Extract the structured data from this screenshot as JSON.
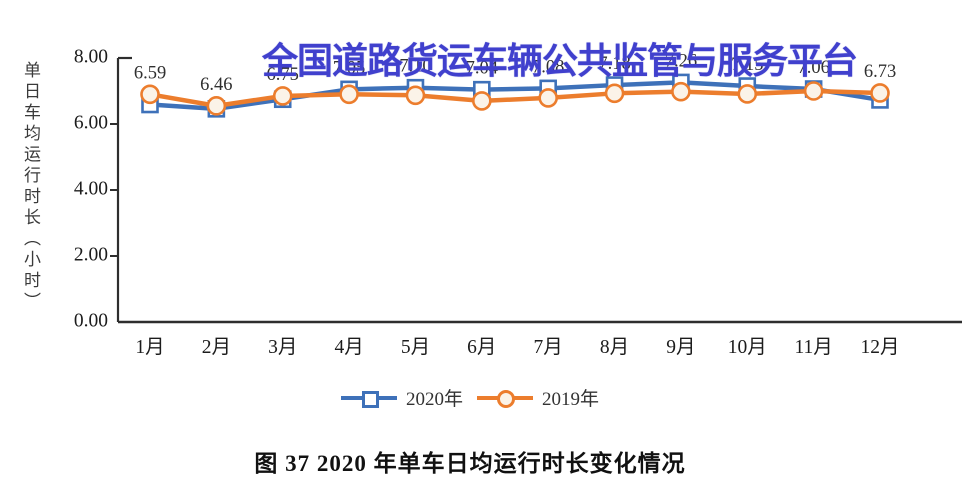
{
  "watermark": "全国道路货运车辆公共监管与服务平台",
  "caption": "图 37 2020 年单车日均运行时长变化情况",
  "colors": {
    "series_2020": "#3e71b9",
    "series_2019": "#ec7d2d",
    "watermark": "#4040cd",
    "axis": "#2e2e2e",
    "point_label_text": "#303030"
  },
  "chart_data": {
    "type": "line",
    "title": "",
    "xlabel": "",
    "ylabel": "单日车均运行时长（小时）",
    "categories": [
      "1月",
      "2月",
      "3月",
      "4月",
      "5月",
      "6月",
      "7月",
      "8月",
      "9月",
      "10月",
      "11月",
      "12月"
    ],
    "ylim": [
      0,
      8
    ],
    "ytick_values": [
      0,
      2,
      4,
      6,
      8
    ],
    "ytick_labels": [
      "0.00",
      "2.00",
      "4.00",
      "6.00",
      "8.00"
    ],
    "grid": false,
    "legend_position": "bottom",
    "series": [
      {
        "name": "2020年",
        "marker": "square",
        "color": "#3e71b9",
        "labeled": true,
        "values": [
          6.59,
          6.46,
          6.75,
          7.05,
          7.1,
          7.04,
          7.08,
          7.18,
          7.26,
          7.15,
          7.06,
          6.73
        ]
      },
      {
        "name": "2019年",
        "marker": "circle",
        "color": "#ec7d2d",
        "labeled": false,
        "values": [
          6.9,
          6.55,
          6.85,
          6.9,
          6.87,
          6.7,
          6.79,
          6.93,
          6.98,
          6.91,
          7.0,
          6.94
        ]
      }
    ],
    "visible_point_labels": {
      "1月": "6.59",
      "2月": "6.46",
      "3月": "6.75",
      "11月": "7.06",
      "12月": "6.73"
    }
  }
}
